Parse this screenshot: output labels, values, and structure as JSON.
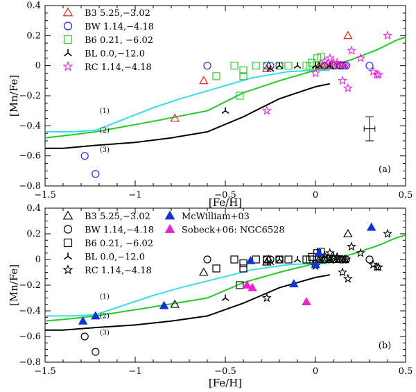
{
  "chart_data": [
    {
      "type": "scatter",
      "panel_label": "(a)",
      "xlabel": "[Fe/H]",
      "ylabel": "[Mn/Fe]",
      "xlim": [
        -1.5,
        0.5
      ],
      "ylim": [
        -0.8,
        0.4
      ],
      "xticks": [
        -1.5,
        -1,
        -0.5,
        0,
        0.5
      ],
      "yticks": [
        -0.8,
        -0.6,
        -0.4,
        -0.2,
        0,
        0.2,
        0.4
      ],
      "legend_position": "top-left",
      "model_curves": [
        {
          "name": "(1)",
          "label": "(1)",
          "color": "#33ddee",
          "x": [
            -1.5,
            -1.35,
            -1.22,
            -0.9,
            -0.75,
            -0.55,
            -0.35,
            -0.15,
            0.0,
            0.08
          ],
          "y": [
            -0.44,
            -0.44,
            -0.43,
            -0.28,
            -0.22,
            -0.15,
            -0.08,
            -0.04,
            -0.03,
            -0.03
          ]
        },
        {
          "name": "(2)",
          "label": "(2)",
          "color": "#22cc22",
          "x": [
            -1.5,
            -1.35,
            -1.22,
            -0.9,
            -0.6,
            -0.4,
            -0.2,
            0.0,
            0.2,
            0.35,
            0.45,
            0.5
          ],
          "y": [
            -0.48,
            -0.46,
            -0.44,
            -0.37,
            -0.3,
            -0.18,
            -0.1,
            -0.03,
            0.04,
            0.11,
            0.17,
            0.19
          ]
        },
        {
          "name": "(3)",
          "label": "(3)",
          "color": "#000000",
          "x": [
            -1.5,
            -1.4,
            -1.22,
            -1.0,
            -0.8,
            -0.6,
            -0.4,
            -0.2,
            0.0,
            0.08
          ],
          "y": [
            -0.55,
            -0.55,
            -0.53,
            -0.51,
            -0.48,
            -0.44,
            -0.34,
            -0.22,
            -0.14,
            -0.12
          ]
        }
      ],
      "series": [
        {
          "name": "B3 5.25,−3.02",
          "marker": "triangle",
          "color": "#ee2222",
          "points": [
            [
              -0.78,
              -0.35
            ],
            [
              -0.62,
              -0.1
            ],
            [
              -0.27,
              -0.02
            ],
            [
              -0.26,
              0.0
            ],
            [
              0.02,
              0.0
            ],
            [
              0.04,
              0.0
            ],
            [
              0.05,
              0.0
            ],
            [
              0.06,
              0.0
            ],
            [
              0.08,
              0.0
            ],
            [
              0.1,
              0.0
            ],
            [
              0.12,
              0.0
            ],
            [
              0.13,
              0.0
            ],
            [
              0.15,
              0.0
            ],
            [
              0.16,
              0.0
            ],
            [
              0.18,
              0.2
            ]
          ]
        },
        {
          "name": "BW 1.14,−4.18",
          "marker": "circle",
          "color": "#2222ee",
          "points": [
            [
              -1.28,
              -0.6
            ],
            [
              -1.22,
              -0.72
            ],
            [
              -0.6,
              0.0
            ],
            [
              -0.27,
              0.0
            ],
            [
              -0.25,
              0.0
            ],
            [
              -0.2,
              0.0
            ],
            [
              0.05,
              0.0
            ],
            [
              0.1,
              0.0
            ],
            [
              0.14,
              0.0
            ],
            [
              0.15,
              0.0
            ],
            [
              0.17,
              0.0
            ],
            [
              0.3,
              0.0
            ]
          ]
        },
        {
          "name": "B6 0.21, −6.02",
          "marker": "square",
          "color": "#33cc33",
          "points": [
            [
              -0.55,
              -0.07
            ],
            [
              -0.45,
              0.0
            ],
            [
              -0.4,
              -0.03
            ],
            [
              -0.4,
              -0.07
            ],
            [
              -0.42,
              -0.2
            ],
            [
              -0.33,
              0.0
            ],
            [
              -0.27,
              0.0
            ],
            [
              -0.2,
              0.0
            ],
            [
              -0.15,
              0.0
            ],
            [
              -0.05,
              0.0
            ],
            [
              -0.03,
              0.0
            ],
            [
              -0.02,
              0.02
            ],
            [
              0.01,
              0.05
            ],
            [
              0.02,
              0.0
            ],
            [
              0.03,
              0.06
            ]
          ]
        },
        {
          "name": "BL 0.0,−12.0",
          "marker": "tripod",
          "color": "#000000",
          "points": [
            [
              -0.5,
              -0.3
            ],
            [
              -0.25,
              -0.02
            ],
            [
              -0.2,
              0.0
            ],
            [
              -0.1,
              0.0
            ],
            [
              0.0,
              0.0
            ],
            [
              0.02,
              0.0
            ],
            [
              0.08,
              0.0
            ]
          ]
        },
        {
          "name": "RC 1.14,−4.18",
          "marker": "star",
          "color": "#ee22ee",
          "points": [
            [
              -0.27,
              -0.3
            ],
            [
              0.0,
              -0.05
            ],
            [
              0.05,
              0.03
            ],
            [
              0.08,
              0.05
            ],
            [
              0.1,
              0.02
            ],
            [
              0.12,
              0.02
            ],
            [
              0.15,
              -0.1
            ],
            [
              0.17,
              0.0
            ],
            [
              0.18,
              -0.15
            ],
            [
              0.2,
              0.1
            ],
            [
              0.25,
              0.05
            ],
            [
              0.32,
              -0.04
            ],
            [
              0.34,
              -0.06
            ],
            [
              0.35,
              -0.06
            ],
            [
              0.4,
              0.2
            ]
          ]
        }
      ],
      "error_bar": {
        "x": 0.3,
        "y": -0.42,
        "xerr": 0.03,
        "yerr": 0.08
      }
    },
    {
      "type": "scatter",
      "panel_label": "(b)",
      "xlabel": "[Fe/H]",
      "ylabel": "[Mn/Fe]",
      "xlim": [
        -1.5,
        0.5
      ],
      "ylim": [
        -0.8,
        0.4
      ],
      "xticks": [
        -1.5,
        -1,
        -0.5,
        0,
        0.5
      ],
      "yticks": [
        -0.8,
        -0.6,
        -0.4,
        -0.2,
        0,
        0.2,
        0.4
      ],
      "legend_position": "top-left",
      "model_curves": [
        {
          "name": "(1)",
          "label": "(1)",
          "color": "#33ddee",
          "x": [
            -1.5,
            -1.35,
            -1.22,
            -0.9,
            -0.75,
            -0.55,
            -0.35,
            -0.15,
            0.0,
            0.08
          ],
          "y": [
            -0.44,
            -0.44,
            -0.43,
            -0.28,
            -0.22,
            -0.15,
            -0.08,
            -0.04,
            -0.03,
            -0.03
          ]
        },
        {
          "name": "(2)",
          "label": "(2)",
          "color": "#22cc22",
          "x": [
            -1.5,
            -1.35,
            -1.22,
            -0.9,
            -0.6,
            -0.4,
            -0.2,
            0.0,
            0.2,
            0.35,
            0.45,
            0.5
          ],
          "y": [
            -0.48,
            -0.46,
            -0.44,
            -0.37,
            -0.3,
            -0.18,
            -0.1,
            -0.03,
            0.04,
            0.11,
            0.17,
            0.19
          ]
        },
        {
          "name": "(3)",
          "label": "(3)",
          "color": "#000000",
          "x": [
            -1.5,
            -1.4,
            -1.22,
            -1.0,
            -0.8,
            -0.6,
            -0.4,
            -0.2,
            0.0,
            0.08
          ],
          "y": [
            -0.55,
            -0.55,
            -0.53,
            -0.51,
            -0.48,
            -0.44,
            -0.34,
            -0.22,
            -0.14,
            -0.12
          ]
        }
      ],
      "series": [
        {
          "name": "B3 5.25,−3.02",
          "marker": "triangle",
          "color": "#000000",
          "points": [
            [
              -0.78,
              -0.35
            ],
            [
              -0.62,
              -0.1
            ],
            [
              -0.27,
              -0.02
            ],
            [
              -0.26,
              0.0
            ],
            [
              0.02,
              0.0
            ],
            [
              0.04,
              0.0
            ],
            [
              0.05,
              0.0
            ],
            [
              0.06,
              0.0
            ],
            [
              0.08,
              0.0
            ],
            [
              0.1,
              0.0
            ],
            [
              0.12,
              0.0
            ],
            [
              0.13,
              0.0
            ],
            [
              0.15,
              0.0
            ],
            [
              0.16,
              0.0
            ],
            [
              0.18,
              0.2
            ]
          ]
        },
        {
          "name": "BW 1.14,−4.18",
          "marker": "circle",
          "color": "#000000",
          "points": [
            [
              -1.28,
              -0.6
            ],
            [
              -1.22,
              -0.72
            ],
            [
              -0.6,
              0.0
            ],
            [
              -0.27,
              0.0
            ],
            [
              -0.25,
              0.0
            ],
            [
              -0.2,
              0.0
            ],
            [
              0.05,
              0.0
            ],
            [
              0.1,
              0.0
            ],
            [
              0.14,
              0.0
            ],
            [
              0.15,
              0.0
            ],
            [
              0.17,
              0.0
            ],
            [
              0.3,
              0.0
            ]
          ]
        },
        {
          "name": "B6 0.21, −6.02",
          "marker": "square",
          "color": "#000000",
          "points": [
            [
              -0.55,
              -0.07
            ],
            [
              -0.45,
              0.0
            ],
            [
              -0.4,
              -0.03
            ],
            [
              -0.4,
              -0.07
            ],
            [
              -0.42,
              -0.2
            ],
            [
              -0.33,
              0.0
            ],
            [
              -0.27,
              0.0
            ],
            [
              -0.2,
              0.0
            ],
            [
              -0.15,
              0.0
            ],
            [
              -0.05,
              0.0
            ],
            [
              -0.03,
              0.0
            ],
            [
              -0.02,
              0.02
            ],
            [
              0.01,
              0.05
            ],
            [
              0.02,
              0.0
            ],
            [
              0.03,
              0.06
            ]
          ]
        },
        {
          "name": "BL 0.0,−12.0",
          "marker": "tripod",
          "color": "#000000",
          "points": [
            [
              -0.5,
              -0.3
            ],
            [
              -0.25,
              -0.02
            ],
            [
              -0.2,
              0.0
            ],
            [
              -0.1,
              0.0
            ],
            [
              0.0,
              0.0
            ],
            [
              0.02,
              0.0
            ],
            [
              0.08,
              0.0
            ]
          ]
        },
        {
          "name": "RC 1.14,−4.18",
          "marker": "star",
          "color": "#000000",
          "points": [
            [
              -0.27,
              -0.3
            ],
            [
              0.0,
              -0.05
            ],
            [
              0.05,
              0.03
            ],
            [
              0.08,
              0.05
            ],
            [
              0.1,
              0.02
            ],
            [
              0.12,
              0.02
            ],
            [
              0.15,
              -0.1
            ],
            [
              0.17,
              0.0
            ],
            [
              0.18,
              -0.15
            ],
            [
              0.2,
              0.1
            ],
            [
              0.25,
              0.05
            ],
            [
              0.32,
              -0.04
            ],
            [
              0.34,
              -0.06
            ],
            [
              0.35,
              -0.06
            ],
            [
              0.4,
              0.2
            ]
          ]
        },
        {
          "name": "McWilliam+03",
          "marker": "triangle-filled",
          "color": "#1133dd",
          "points": [
            [
              -1.29,
              -0.48
            ],
            [
              -1.22,
              -0.44
            ],
            [
              -0.84,
              -0.36
            ],
            [
              -0.36,
              -0.01
            ],
            [
              -0.12,
              -0.19
            ],
            [
              0.0,
              -0.04
            ],
            [
              0.02,
              0.05
            ],
            [
              0.31,
              0.25
            ]
          ]
        },
        {
          "name": "Sobeck+06: NGC6528",
          "marker": "triangle-filled",
          "color": "#ee22cc",
          "points": [
            [
              -0.38,
              -0.2
            ],
            [
              -0.35,
              -0.22
            ],
            [
              -0.05,
              -0.33
            ]
          ]
        }
      ]
    }
  ]
}
